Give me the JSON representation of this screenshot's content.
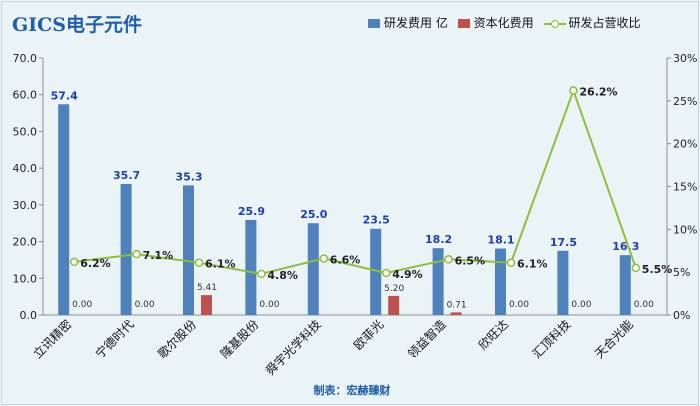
{
  "header": {
    "title": "GICS电子元件"
  },
  "legend": {
    "rd": "研发费用 亿",
    "cap": "资本化费用",
    "ratio": "研发占营收比"
  },
  "footer": {
    "credit": "制表：宏赫臻财"
  },
  "colors": {
    "rd": "#4f81bd",
    "cap": "#c0504d",
    "ratio": "#8dbf3c",
    "rdLabel": "#1f3fa8"
  },
  "chart_data": {
    "type": "bar",
    "categories": [
      "立讯精密",
      "宁德时代",
      "歌尔股份",
      "隆基股份",
      "舜宇光学科技",
      "欧菲光",
      "领益智造",
      "欣旺达",
      "汇顶科技",
      "天合光能"
    ],
    "series": [
      {
        "name": "研发费用 亿",
        "type": "bar",
        "axis": "left",
        "values": [
          57.4,
          35.7,
          35.3,
          25.9,
          25.0,
          23.5,
          18.2,
          18.1,
          17.5,
          16.3
        ],
        "labels": [
          "57.4",
          "35.7",
          "35.3",
          "25.9",
          "25.0",
          "23.5",
          "18.2",
          "18.1",
          "17.5",
          "16.3"
        ]
      },
      {
        "name": "资本化费用",
        "type": "bar",
        "axis": "left",
        "values": [
          0.0,
          0.0,
          5.41,
          0.0,
          null,
          5.2,
          0.71,
          0.0,
          0.0,
          0.0
        ],
        "labels": [
          "0.00",
          "0.00",
          "5.41",
          "0.00",
          "",
          "5.20",
          "0.71",
          "0.00",
          "0.00",
          "0.00"
        ]
      },
      {
        "name": "研发占营收比",
        "type": "line",
        "axis": "right",
        "values": [
          6.2,
          7.1,
          6.1,
          4.8,
          6.6,
          4.9,
          6.5,
          6.1,
          26.2,
          5.5
        ],
        "labels": [
          "6.2%",
          "7.1%",
          "6.1%",
          "4.8%",
          "6.6%",
          "4.9%",
          "6.5%",
          "6.1%",
          "26.2%",
          "5.5%"
        ]
      }
    ],
    "y_left": {
      "min": 0,
      "max": 70,
      "ticks": [
        "0.0",
        "10.0",
        "20.0",
        "30.0",
        "40.0",
        "50.0",
        "60.0",
        "70.0"
      ]
    },
    "y_right": {
      "min": 0,
      "max": 30,
      "ticks": [
        "0%",
        "5%",
        "10%",
        "15%",
        "20%",
        "25%",
        "30%"
      ]
    },
    "grid": false,
    "legend_position": "top-right"
  }
}
